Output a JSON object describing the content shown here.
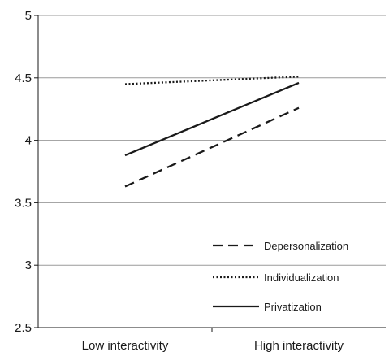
{
  "chart_data": {
    "type": "line",
    "title": "",
    "xlabel": "",
    "ylabel": "",
    "categories": [
      "Low interactivity",
      "High interactivity"
    ],
    "ylim": [
      2.5,
      5
    ],
    "yticks": [
      "2.5",
      "3",
      "3.5",
      "4",
      "4.5",
      "5"
    ],
    "grid": true,
    "legend_position": "bottom-right",
    "series": [
      {
        "name": "Depersonalization",
        "values": [
          3.63,
          4.26
        ],
        "style": "dashed",
        "color": "#1a1a1a"
      },
      {
        "name": "Individualization",
        "values": [
          4.45,
          4.51
        ],
        "style": "dotted",
        "color": "#1a1a1a"
      },
      {
        "name": "Privatization",
        "values": [
          3.88,
          4.46
        ],
        "style": "solid",
        "color": "#1a1a1a"
      }
    ]
  }
}
